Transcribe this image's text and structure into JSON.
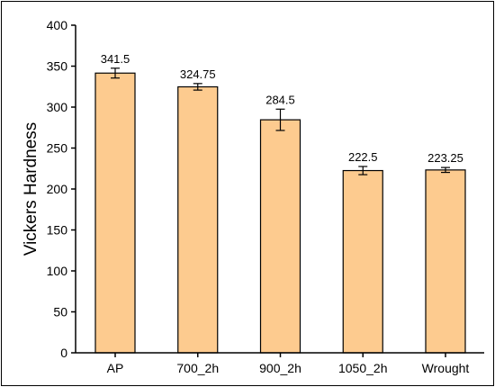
{
  "chart_data": {
    "type": "bar",
    "title": "",
    "xlabel": "",
    "ylabel": "Vickers Hardness",
    "categories": [
      "AP",
      "700_2h",
      "900_2h",
      "1050_2h",
      "Wrought"
    ],
    "values": [
      341.5,
      324.75,
      284.5,
      222.5,
      223.25
    ],
    "value_labels": [
      "341.5",
      "324.75",
      "284.5",
      "222.5",
      "223.25"
    ],
    "error": [
      6,
      4,
      13,
      5,
      3
    ],
    "ylim": [
      0,
      400
    ],
    "yticks": [
      0,
      50,
      100,
      150,
      200,
      250,
      300,
      350,
      400
    ],
    "ytick_labels": [
      "0",
      "50",
      "100",
      "150",
      "200",
      "250",
      "300",
      "350",
      "400"
    ],
    "grid": false,
    "legend": "none",
    "colors": {
      "bar_fill": "#FDCB8F",
      "bar_stroke": "#000000",
      "axis": "#000000"
    }
  }
}
